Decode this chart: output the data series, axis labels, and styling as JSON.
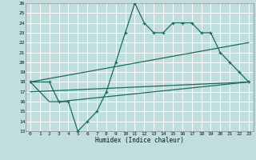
{
  "background_color": "#c0dede",
  "grid_color": "#ffffff",
  "line_color": "#1a6b5a",
  "xlabel": "Humidex (Indice chaleur)",
  "xlim": [
    -0.5,
    23.5
  ],
  "ylim": [
    13,
    26
  ],
  "xticks": [
    0,
    1,
    2,
    3,
    4,
    5,
    6,
    7,
    8,
    9,
    10,
    11,
    12,
    13,
    14,
    15,
    16,
    17,
    18,
    19,
    20,
    21,
    22,
    23
  ],
  "yticks": [
    13,
    14,
    15,
    16,
    17,
    18,
    19,
    20,
    21,
    22,
    23,
    24,
    25,
    26
  ],
  "series": [
    {
      "x": [
        0,
        2,
        3,
        4,
        5,
        6,
        7,
        8,
        9,
        10,
        11,
        12,
        13,
        14,
        15,
        16,
        17,
        18,
        19,
        20,
        21,
        22,
        23
      ],
      "y": [
        18,
        18,
        16,
        16,
        13,
        14,
        15,
        17,
        20,
        23,
        26,
        24,
        23,
        23,
        24,
        24,
        24,
        23,
        23,
        21,
        20,
        19,
        18
      ],
      "marker": "+"
    },
    {
      "x": [
        0,
        2,
        3,
        23
      ],
      "y": [
        18,
        16,
        16,
        18
      ],
      "marker": null
    },
    {
      "x": [
        0,
        23
      ],
      "y": [
        18,
        22
      ],
      "marker": null
    },
    {
      "x": [
        0,
        23
      ],
      "y": [
        17,
        18
      ],
      "marker": null
    }
  ]
}
